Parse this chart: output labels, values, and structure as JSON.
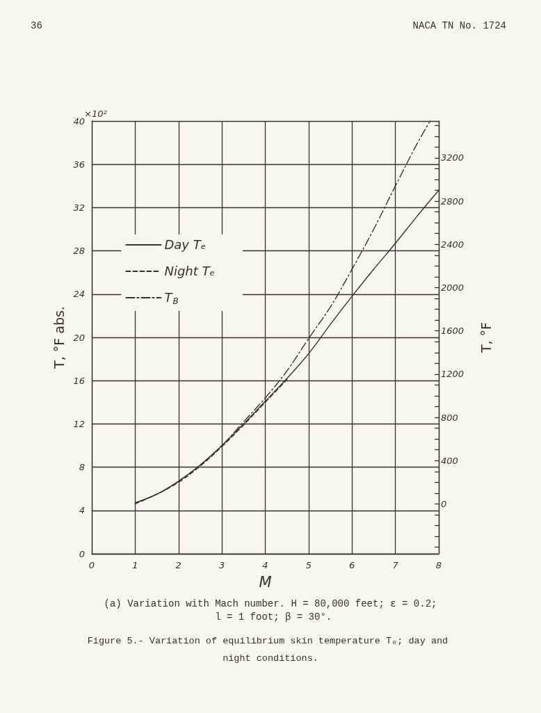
{
  "chart_data": {
    "type": "line",
    "title": "Figure 5.- Variation of equilibrium skin temperature Tₑ; day and night conditions.",
    "subtitle": "(a) Variation with Mach number. H = 80,000 feet; ε = 0.2; l = 1 foot; β = 30°.",
    "annotations": [
      "36",
      "NACA TN No. 1724",
      "×10²"
    ],
    "xlabel": "M",
    "ylabel": "T, °F abs.",
    "y2label": "T, °F",
    "xlim": [
      0,
      8
    ],
    "xticks": [
      0,
      1,
      2,
      3,
      4,
      5,
      6,
      7,
      8
    ],
    "ylim": [
      0,
      40
    ],
    "yticks": [
      0,
      4,
      8,
      12,
      16,
      20,
      24,
      28,
      32,
      36,
      40
    ],
    "y2lim": [
      -460,
      3540
    ],
    "y2ticks": [
      {
        "value": -400,
        "label": null
      },
      {
        "value": -300,
        "label": null
      },
      {
        "value": -200,
        "label": null
      },
      {
        "value": -100,
        "label": null
      },
      0,
      {
        "value": 100,
        "label": null
      },
      {
        "value": 200,
        "label": null
      },
      {
        "value": 300,
        "label": null
      },
      400,
      {
        "value": 500,
        "label": null
      },
      {
        "value": 600,
        "label": null
      },
      {
        "value": 700,
        "label": null
      },
      800,
      {
        "value": 900,
        "label": null
      },
      {
        "value": 1000,
        "label": null
      },
      {
        "value": 1100,
        "label": null
      },
      1200,
      {
        "value": 1300,
        "label": null
      },
      {
        "value": 1400,
        "label": null
      },
      {
        "value": 1500,
        "label": null
      },
      1600,
      {
        "value": 1700,
        "label": null
      },
      {
        "value": 1800,
        "label": null
      },
      {
        "value": 1900,
        "label": null
      },
      2000,
      {
        "value": 2100,
        "label": null
      },
      {
        "value": 2200,
        "label": null
      },
      {
        "value": 2300,
        "label": null
      },
      2400,
      {
        "value": 2500,
        "label": null
      },
      {
        "value": 2600,
        "label": null
      },
      {
        "value": 2700,
        "label": null
      },
      2800,
      {
        "value": 2900,
        "label": null
      },
      {
        "value": 3000,
        "label": null
      },
      {
        "value": 3100,
        "label": null
      },
      3200,
      {
        "value": 3300,
        "label": null
      },
      {
        "value": 3400,
        "label": null
      },
      {
        "value": 3500,
        "label": null
      }
    ],
    "grid": true,
    "legend": "top left",
    "series": [
      {
        "name": "Day Tₑ",
        "color": "#35312c",
        "line_style": "solid",
        "x": [
          1,
          1.5,
          2,
          2.5,
          3,
          3.5,
          4,
          4.5,
          5,
          5.5,
          6,
          6.5,
          7,
          7.5,
          8
        ],
        "values": [
          4.7,
          5.5,
          6.7,
          8.2,
          10.0,
          12.0,
          14.1,
          16.2,
          18.5,
          21.2,
          23.8,
          26.3,
          28.7,
          31.2,
          33.6
        ]
      },
      {
        "name": "Night Tₑ",
        "color": "#35312c",
        "line_style": "dashed",
        "x": [
          1,
          1.5,
          2,
          2.5,
          3,
          3.5,
          4,
          4.5
        ],
        "values": [
          4.6,
          5.5,
          6.6,
          8.1,
          9.9,
          11.9,
          14.0,
          16.1
        ]
      },
      {
        "name": "T$_{B}$",
        "color": "#35312c",
        "line_style": "dashdot",
        "x": [
          1,
          1.5,
          2,
          2.5,
          3,
          3.5,
          4,
          4.5,
          5,
          5.5,
          6,
          6.5,
          7,
          7.5,
          7.8
        ],
        "values": [
          4.7,
          5.5,
          6.7,
          8.2,
          10.0,
          12.2,
          14.4,
          16.9,
          19.9,
          22.8,
          26.3,
          30.0,
          34.0,
          37.9,
          40
        ]
      }
    ]
  }
}
